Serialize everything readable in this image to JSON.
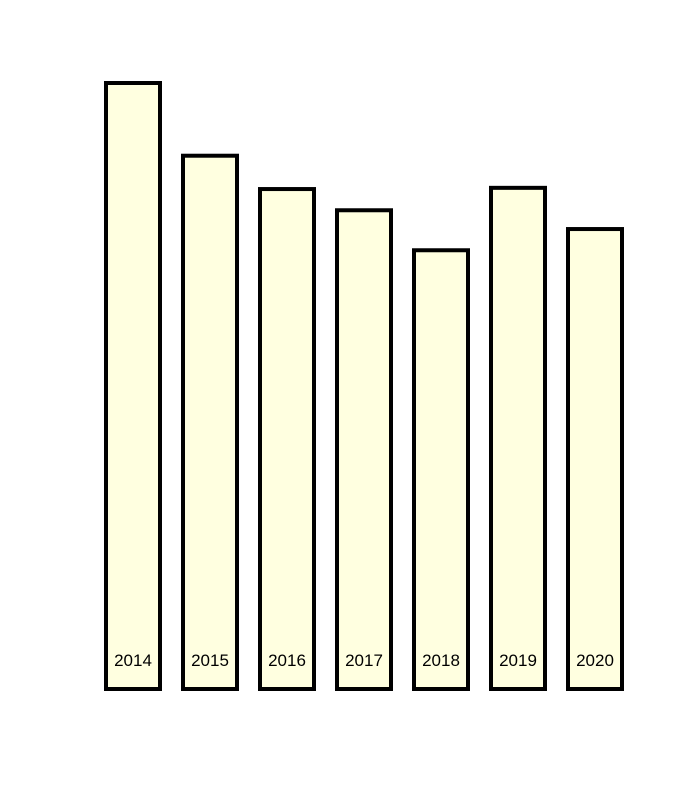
{
  "chart_data": {
    "type": "bar",
    "categories": [
      "2014",
      "2015",
      "2016",
      "2017",
      "2018",
      "2019",
      "2020"
    ],
    "values": [
      100,
      88,
      82.5,
      79,
      72.4,
      82.7,
      75.9
    ],
    "ylim": [
      0,
      100
    ],
    "grid": false,
    "legend": "none",
    "colors": {
      "bar_fill": "#ffffe0",
      "bar_stroke": "#000000"
    }
  }
}
